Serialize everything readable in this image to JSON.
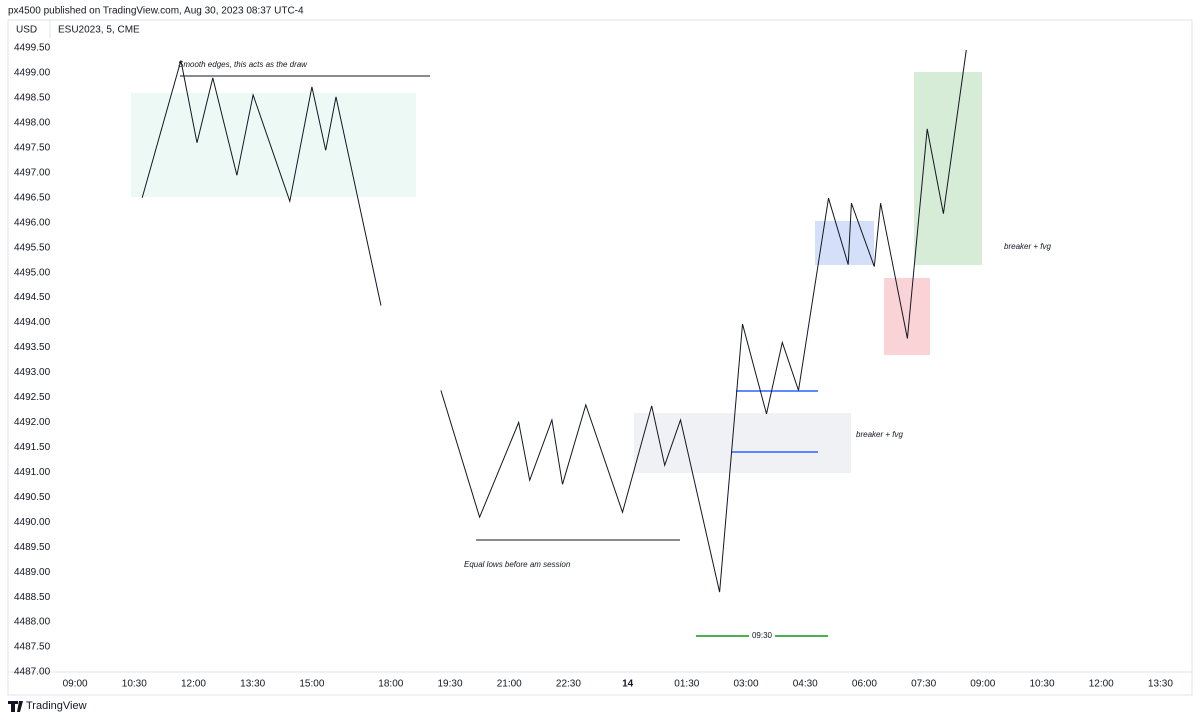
{
  "header": {
    "publisher": "px4500 published on TradingView.com, Aug 30, 2023 08:37 UTC-4",
    "currency": "USD",
    "symbol": "ESU2023, 5, CME",
    "brand": "TradingView"
  },
  "chart_data": {
    "type": "line",
    "x": [
      1.7,
      2.68,
      3.09,
      3.49,
      4.1,
      4.51,
      5.44,
      6.0,
      6.35,
      6.61,
      7.75,
      null,
      9.27,
      10.25,
      11.24,
      11.52,
      12.08,
      12.35,
      12.94,
      13.87,
      14.61,
      14.94,
      15.34,
      16.33,
      16.91,
      17.52,
      17.92,
      18.33,
      19.09,
      19.59,
      19.67,
      20.25,
      20.41,
      21.09,
      21.59,
      22.0,
      22.58
    ],
    "series": [
      {
        "color": "#131722",
        "values": [
          4496.5,
          4499.25,
          4497.6,
          4498.9,
          4496.95,
          4498.56,
          4496.43,
          4498.72,
          4497.45,
          4498.52,
          4494.34,
          null,
          4492.64,
          4490.1,
          4492.0,
          4490.84,
          4492.05,
          4490.76,
          4492.35,
          4490.2,
          4492.33,
          4491.14,
          4492.05,
          4488.6,
          4493.97,
          4492.17,
          4493.6,
          4492.64,
          4496.49,
          4495.16,
          4496.39,
          4495.12,
          4496.39,
          4493.68,
          4497.88,
          4496.18,
          4499.46
        ]
      }
    ],
    "xlim": [
      -1.7,
      28.3
    ],
    "xticks": [
      {
        "value": 0,
        "label": "09:00"
      },
      {
        "value": 1.5,
        "label": "10:30"
      },
      {
        "value": 3,
        "label": "12:00"
      },
      {
        "value": 4.5,
        "label": "13:30"
      },
      {
        "value": 6,
        "label": "15:00"
      },
      {
        "value": 8,
        "label": "18:00"
      },
      {
        "value": 9.5,
        "label": "19:30"
      },
      {
        "value": 11,
        "label": "21:00"
      },
      {
        "value": 12.5,
        "label": "22:30"
      },
      14,
      {
        "value": 15.5,
        "label": "01:30"
      },
      {
        "value": 17,
        "label": "03:00"
      },
      {
        "value": 18.5,
        "label": "04:30"
      },
      {
        "value": 20,
        "label": "06:00"
      },
      {
        "value": 21.5,
        "label": "07:30"
      },
      {
        "value": 23,
        "label": "09:00"
      },
      {
        "value": 24.5,
        "label": "10:30"
      },
      {
        "value": 26,
        "label": "12:00"
      },
      {
        "value": 27.5,
        "label": "13:30"
      }
    ],
    "ylim": [
      4487.0,
      4499.7
    ],
    "yticks": [
      {
        "value": 4487,
        "label": "4487.00"
      },
      {
        "value": 4487.5,
        "label": "4487.50"
      },
      {
        "value": 4488,
        "label": "4488.00"
      },
      {
        "value": 4488.5,
        "label": "4488.50"
      },
      {
        "value": 4489,
        "label": "4489.00"
      },
      {
        "value": 4489.5,
        "label": "4489.50"
      },
      {
        "value": 4490,
        "label": "4490.00"
      },
      {
        "value": 4490.5,
        "label": "4490.50"
      },
      {
        "value": 4491,
        "label": "4491.00"
      },
      {
        "value": 4491.5,
        "label": "4491.50"
      },
      {
        "value": 4492,
        "label": "4492.00"
      },
      {
        "value": 4492.5,
        "label": "4492.50"
      },
      {
        "value": 4493,
        "label": "4493.00"
      },
      {
        "value": 4493.5,
        "label": "4493.50"
      },
      {
        "value": 4494,
        "label": "4494.00"
      },
      {
        "value": 4494.5,
        "label": "4494.50"
      },
      {
        "value": 4495,
        "label": "4495.00"
      },
      {
        "value": 4495.5,
        "label": "4495.50"
      },
      {
        "value": 4496,
        "label": "4496.00"
      },
      {
        "value": 4496.5,
        "label": "4496.50"
      },
      {
        "value": 4497,
        "label": "4497.00"
      },
      {
        "value": 4497.5,
        "label": "4497.50"
      },
      {
        "value": 4498,
        "label": "4498.00"
      },
      {
        "value": 4498.5,
        "label": "4498.50"
      },
      {
        "value": 4499,
        "label": "4499.00"
      },
      {
        "value": 4499.5,
        "label": "4499.50"
      }
    ],
    "annotations": [
      "Smooth edges, this acts as the draw",
      "Equal lows before am session",
      "breaker + fvg",
      "breaker + fvg",
      "09:30"
    ]
  }
}
